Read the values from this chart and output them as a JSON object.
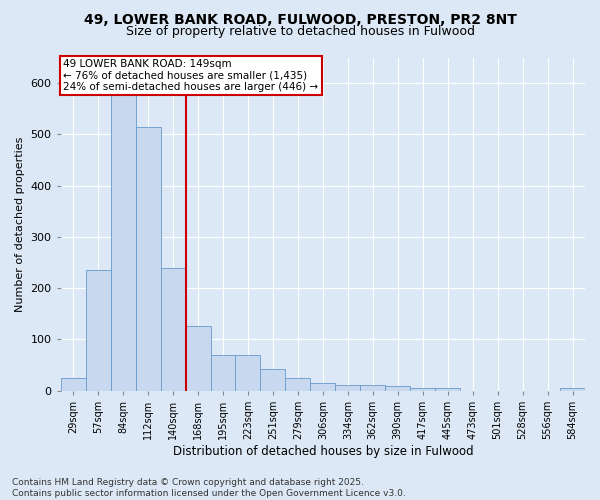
{
  "title_line1": "49, LOWER BANK ROAD, FULWOOD, PRESTON, PR2 8NT",
  "title_line2": "Size of property relative to detached houses in Fulwood",
  "xlabel": "Distribution of detached houses by size in Fulwood",
  "ylabel": "Number of detached properties",
  "categories": [
    "29sqm",
    "57sqm",
    "84sqm",
    "112sqm",
    "140sqm",
    "168sqm",
    "195sqm",
    "223sqm",
    "251sqm",
    "279sqm",
    "306sqm",
    "334sqm",
    "362sqm",
    "390sqm",
    "417sqm",
    "445sqm",
    "473sqm",
    "501sqm",
    "528sqm",
    "556sqm",
    "584sqm"
  ],
  "values": [
    25,
    235,
    580,
    515,
    240,
    125,
    70,
    70,
    42,
    25,
    15,
    10,
    10,
    8,
    5,
    5,
    0,
    0,
    0,
    0,
    5
  ],
  "bar_color": "#c8d8ee",
  "bar_edge_color": "#6699cc",
  "vline_x_index": 4,
  "vline_color": "#cc0000",
  "annotation_text": "49 LOWER BANK ROAD: 149sqm\n← 76% of detached houses are smaller (1,435)\n24% of semi-detached houses are larger (446) →",
  "annotation_box_color": "#ffffff",
  "annotation_box_edge": "#cc0000",
  "footnote": "Contains HM Land Registry data © Crown copyright and database right 2025.\nContains public sector information licensed under the Open Government Licence v3.0.",
  "ylim": [
    0,
    650
  ],
  "yticks": [
    0,
    100,
    200,
    300,
    400,
    500,
    600
  ],
  "background_color": "#dce8f5",
  "plot_background": "#dce8f5",
  "grid_color": "#ffffff",
  "title1_fontsize": 10,
  "title2_fontsize": 9,
  "footnote_fontsize": 6.5
}
